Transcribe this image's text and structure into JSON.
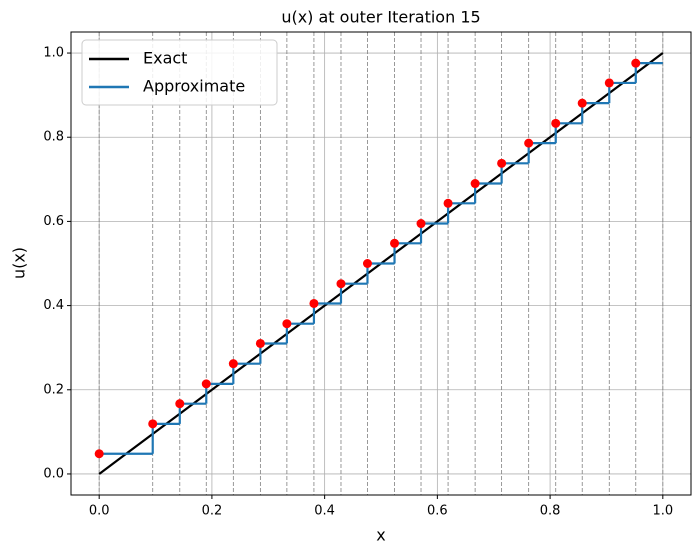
{
  "chart_data": {
    "type": "line",
    "title": "u(x) at outer Iteration 15",
    "xlabel": "x",
    "ylabel": "u(x)",
    "xlim": [
      -0.05,
      1.05
    ],
    "ylim": [
      -0.05,
      1.05
    ],
    "xticks": [
      {
        "value": 0,
        "label": "0.0"
      },
      0.2,
      0.4,
      0.6,
      0.8,
      {
        "value": 1,
        "label": "1.0"
      }
    ],
    "yticks": [
      {
        "value": 0,
        "label": "0.0"
      },
      0.2,
      0.4,
      0.6,
      0.8,
      {
        "value": 1,
        "label": "1.0"
      }
    ],
    "grid": true,
    "legend": "upper left",
    "series": [
      {
        "name": "Exact",
        "color": "#000000",
        "x": [
          0,
          1
        ],
        "values": [
          0,
          1
        ]
      },
      {
        "name": "Approximate",
        "color": "#1f77b4",
        "drawstyle": "steps-post",
        "x": [
          0,
          0.095,
          0.143,
          0.19,
          0.238,
          0.286,
          0.333,
          0.381,
          0.429,
          0.476,
          0.524,
          0.571,
          0.619,
          0.667,
          0.714,
          0.762,
          0.81,
          0.857,
          0.905,
          0.952,
          1.0
        ],
        "values": [
          0.048,
          0.119,
          0.167,
          0.214,
          0.262,
          0.31,
          0.357,
          0.405,
          0.452,
          0.5,
          0.548,
          0.595,
          0.643,
          0.69,
          0.738,
          0.786,
          0.833,
          0.881,
          0.929,
          0.976,
          0.976
        ]
      }
    ],
    "markers": {
      "color": "#ff0000",
      "x": [
        0,
        0.095,
        0.143,
        0.19,
        0.238,
        0.286,
        0.333,
        0.381,
        0.429,
        0.476,
        0.524,
        0.571,
        0.619,
        0.667,
        0.714,
        0.762,
        0.81,
        0.857,
        0.905,
        0.952
      ],
      "values": [
        0.048,
        0.119,
        0.167,
        0.214,
        0.262,
        0.31,
        0.357,
        0.405,
        0.452,
        0.5,
        0.548,
        0.595,
        0.643,
        0.69,
        0.738,
        0.786,
        0.833,
        0.881,
        0.929,
        0.976
      ]
    },
    "vlines": [
      0,
      0.095,
      0.143,
      0.19,
      0.238,
      0.286,
      0.333,
      0.381,
      0.429,
      0.476,
      0.524,
      0.571,
      0.619,
      0.667,
      0.714,
      0.762,
      0.81,
      0.857,
      0.905,
      0.952,
      1.0
    ]
  }
}
